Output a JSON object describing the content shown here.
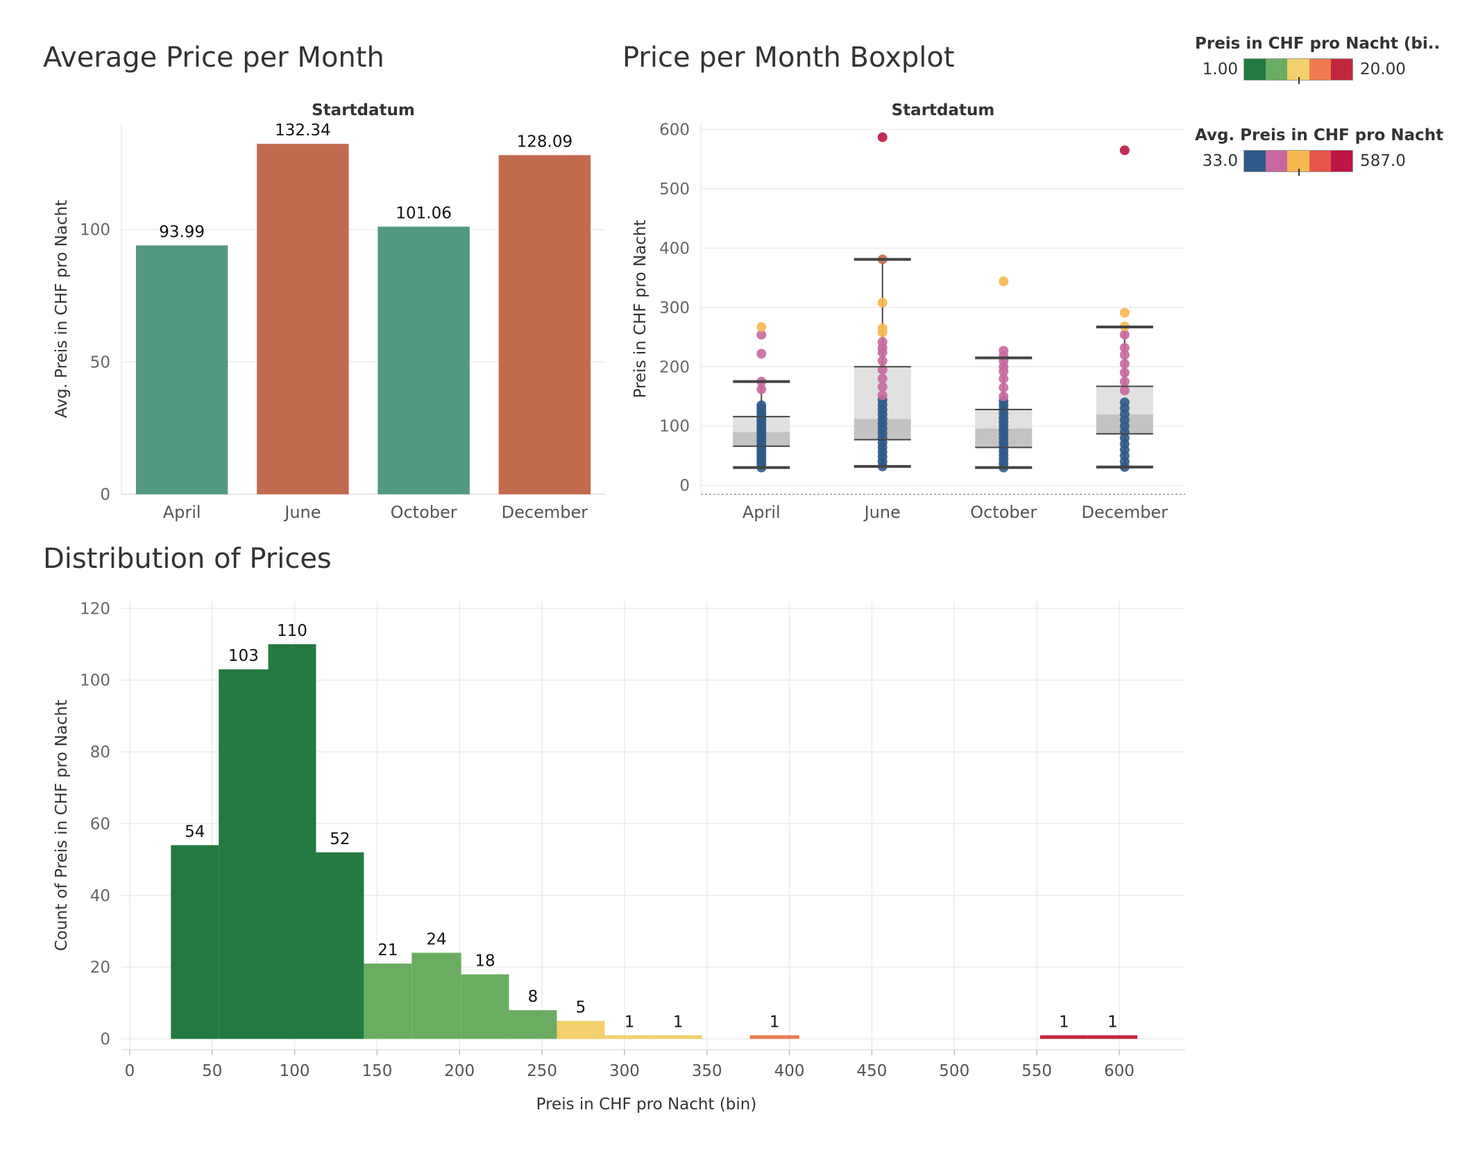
{
  "titles": {
    "avg": "Average Price per Month",
    "box": "Price per Month Boxplot",
    "dist": "Distribution of Prices"
  },
  "legends": [
    {
      "title": "Preis in CHF pro Nacht (bi..",
      "min": "1.00",
      "max": "20.00",
      "colors": [
        "#23793f",
        "#6aad62",
        "#f2d06b",
        "#ee7b4f",
        "#c1273b"
      ]
    },
    {
      "title": "Avg. Preis in CHF pro Nacht",
      "min": "33.0",
      "max": "587.0",
      "colors": [
        "#2f5a8a",
        "#c9689f",
        "#f6b74f",
        "#e6564d",
        "#bd1545"
      ]
    }
  ],
  "chart_data": [
    {
      "id": "avg",
      "type": "bar",
      "header": "Startdatum",
      "categories": [
        "April",
        "June",
        "October",
        "December"
      ],
      "values": [
        93.99,
        132.34,
        101.06,
        128.09
      ],
      "value_labels": [
        "93.99",
        "132.34",
        "101.06",
        "128.09"
      ],
      "colors": [
        "#529882",
        "#c26a4e",
        "#529882",
        "#c26a4e"
      ],
      "ylabel": "Avg. Preis in CHF pro Nacht",
      "yticks": [
        0,
        50,
        100
      ],
      "ylim": [
        0,
        140
      ],
      "grid": true
    },
    {
      "id": "box",
      "type": "boxplot",
      "header": "Startdatum",
      "categories": [
        "April",
        "June",
        "October",
        "December"
      ],
      "ylabel": "Preis in CHF pro Nacht",
      "yticks": [
        0,
        100,
        200,
        300,
        400,
        500,
        600
      ],
      "ylim": [
        -15,
        610
      ],
      "boxes": [
        {
          "whisker_low": 30,
          "q1": 66,
          "median": 90,
          "q3": 116,
          "whisker_high": 175
        },
        {
          "whisker_low": 32,
          "q1": 77,
          "median": 112,
          "q3": 200,
          "whisker_high": 381
        },
        {
          "whisker_low": 30,
          "q1": 64,
          "median": 96,
          "q3": 128,
          "whisker_high": 215
        },
        {
          "whisker_low": 31,
          "q1": 87,
          "median": 120,
          "q3": 167,
          "whisker_high": 267
        }
      ],
      "points": [
        {
          "x": "April",
          "values": [
            30,
            35,
            40,
            45,
            50,
            55,
            60,
            65,
            70,
            75,
            80,
            85,
            90,
            95,
            100,
            105,
            110,
            115,
            120,
            125,
            130,
            135
          ],
          "color": "#2f5a8a"
        },
        {
          "x": "April",
          "values": [
            162,
            175,
            222,
            254
          ],
          "color": "#c9689f"
        },
        {
          "x": "April",
          "values": [
            267
          ],
          "color": "#f6b74f"
        },
        {
          "x": "June",
          "values": [
            32,
            40,
            48,
            56,
            64,
            72,
            80,
            88,
            96,
            104,
            112,
            120,
            128,
            136,
            144
          ],
          "color": "#2f5a8a"
        },
        {
          "x": "June",
          "values": [
            152,
            166,
            180,
            195,
            210,
            224,
            232,
            242
          ],
          "color": "#c9689f"
        },
        {
          "x": "June",
          "values": [
            258,
            265,
            308
          ],
          "color": "#f6b74f"
        },
        {
          "x": "June",
          "values": [
            381
          ],
          "color": "#c26a4e"
        },
        {
          "x": "June",
          "values": [
            587
          ],
          "color": "#bd1545"
        },
        {
          "x": "October",
          "values": [
            30,
            37,
            44,
            51,
            58,
            65,
            72,
            79,
            86,
            93,
            100,
            107,
            114,
            121,
            128,
            135,
            142
          ],
          "color": "#2f5a8a"
        },
        {
          "x": "October",
          "values": [
            150,
            165,
            180,
            192,
            200,
            210,
            218,
            227
          ],
          "color": "#c9689f"
        },
        {
          "x": "October",
          "values": [
            344
          ],
          "color": "#f6b74f"
        },
        {
          "x": "December",
          "values": [
            31,
            40,
            50,
            60,
            70,
            80,
            90,
            100,
            110,
            120,
            130,
            140
          ],
          "color": "#2f5a8a"
        },
        {
          "x": "December",
          "values": [
            160,
            175,
            190,
            205,
            220,
            232,
            254
          ],
          "color": "#c9689f"
        },
        {
          "x": "December",
          "values": [
            268,
            291
          ],
          "color": "#f6b74f"
        },
        {
          "x": "December",
          "values": [
            565
          ],
          "color": "#bd1545"
        }
      ],
      "grid": true
    },
    {
      "id": "dist",
      "type": "bar",
      "xlabel": "Preis in CHF pro Nacht (bin)",
      "ylabel": "Count of Preis in CHF pro Nacht",
      "xticks": [
        0,
        50,
        100,
        150,
        200,
        250,
        300,
        350,
        400,
        450,
        500,
        550,
        600
      ],
      "yticks": [
        0,
        20,
        40,
        60,
        80,
        100,
        120
      ],
      "xlim": [
        -5,
        640
      ],
      "ylim": [
        -3,
        122
      ],
      "bins": [
        {
          "x0": 25,
          "x1": 54,
          "value": 54,
          "label": "54",
          "color": "#23793f"
        },
        {
          "x0": 54,
          "x1": 84,
          "value": 103,
          "label": "103",
          "color": "#23793f"
        },
        {
          "x0": 84,
          "x1": 113,
          "value": 110,
          "label": "110",
          "color": "#23793f"
        },
        {
          "x0": 113,
          "x1": 142,
          "value": 52,
          "label": "52",
          "color": "#23793f"
        },
        {
          "x0": 142,
          "x1": 171,
          "value": 21,
          "label": "21",
          "color": "#6aad62"
        },
        {
          "x0": 171,
          "x1": 201,
          "value": 24,
          "label": "24",
          "color": "#6aad62"
        },
        {
          "x0": 201,
          "x1": 230,
          "value": 18,
          "label": "18",
          "color": "#6aad62"
        },
        {
          "x0": 230,
          "x1": 259,
          "value": 8,
          "label": "8",
          "color": "#6aad62"
        },
        {
          "x0": 259,
          "x1": 288,
          "value": 5,
          "label": "5",
          "color": "#f2d06b"
        },
        {
          "x0": 288,
          "x1": 318,
          "value": 1,
          "label": "1",
          "color": "#f2d06b"
        },
        {
          "x0": 318,
          "x1": 347,
          "value": 1,
          "label": "1",
          "color": "#f2d06b"
        },
        {
          "x0": 376,
          "x1": 406,
          "value": 1,
          "label": "1",
          "color": "#ee7b4f"
        },
        {
          "x0": 552,
          "x1": 581,
          "value": 1,
          "label": "1",
          "color": "#c1273b"
        },
        {
          "x0": 581,
          "x1": 611,
          "value": 1,
          "label": "1",
          "color": "#c1273b"
        }
      ],
      "grid": true
    }
  ]
}
